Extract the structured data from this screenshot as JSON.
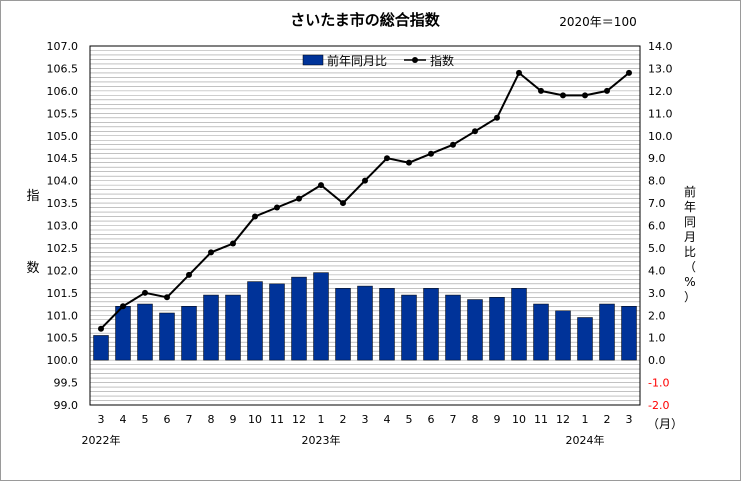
{
  "chart_data": {
    "type": "bar",
    "title": "さいたま市の総合指数",
    "base_note": "2020年＝100",
    "left_axis_label": [
      "指",
      "数"
    ],
    "right_axis_label": [
      "前",
      "年",
      "同",
      "月",
      "比",
      "（",
      "%",
      "）"
    ],
    "month_unit": "（月）",
    "years": [
      {
        "label": "2022年",
        "at_index": 0
      },
      {
        "label": "2023年",
        "at_index": 10
      },
      {
        "label": "2024年",
        "at_index": 22
      }
    ],
    "categories": [
      "3",
      "4",
      "5",
      "6",
      "7",
      "8",
      "9",
      "10",
      "11",
      "12",
      "1",
      "2",
      "3",
      "4",
      "5",
      "6",
      "7",
      "8",
      "9",
      "10",
      "11",
      "12",
      "1",
      "2",
      "3"
    ],
    "left_axis": {
      "min": 99.0,
      "max": 107.0,
      "step": 0.5,
      "ticks": [
        "99.0",
        "99.5",
        "100.0",
        "100.5",
        "101.0",
        "101.5",
        "102.0",
        "102.5",
        "103.0",
        "103.5",
        "104.0",
        "104.5",
        "105.0",
        "105.5",
        "106.0",
        "106.5",
        "107.0"
      ]
    },
    "right_axis": {
      "min": -2.0,
      "max": 14.0,
      "step": 1.0,
      "ticks": [
        "-2.0",
        "-1.0",
        "0.0",
        "1.0",
        "2.0",
        "3.0",
        "4.0",
        "5.0",
        "6.0",
        "7.0",
        "8.0",
        "9.0",
        "10.0",
        "11.0",
        "12.0",
        "13.0",
        "14.0"
      ],
      "negative_color": "#ff0000"
    },
    "grid": true,
    "legend_position": "top-center",
    "series": [
      {
        "name": "前年同月比",
        "kind": "bar",
        "axis": "right",
        "color": "#003399",
        "values": [
          1.1,
          2.4,
          2.5,
          2.1,
          2.4,
          2.9,
          2.9,
          3.5,
          3.4,
          3.7,
          3.9,
          3.2,
          3.3,
          3.2,
          2.9,
          3.2,
          2.9,
          2.7,
          2.8,
          3.2,
          2.5,
          2.2,
          1.9,
          2.5,
          2.4
        ]
      },
      {
        "name": "指数",
        "kind": "line",
        "axis": "left",
        "color": "#000000",
        "values": [
          100.7,
          101.2,
          101.5,
          101.4,
          101.9,
          102.4,
          102.6,
          103.2,
          103.4,
          103.6,
          103.9,
          103.5,
          104.0,
          104.5,
          104.4,
          104.6,
          104.8,
          105.1,
          105.4,
          106.4,
          106.0,
          105.9,
          105.9,
          106.0,
          106.4
        ]
      }
    ]
  }
}
